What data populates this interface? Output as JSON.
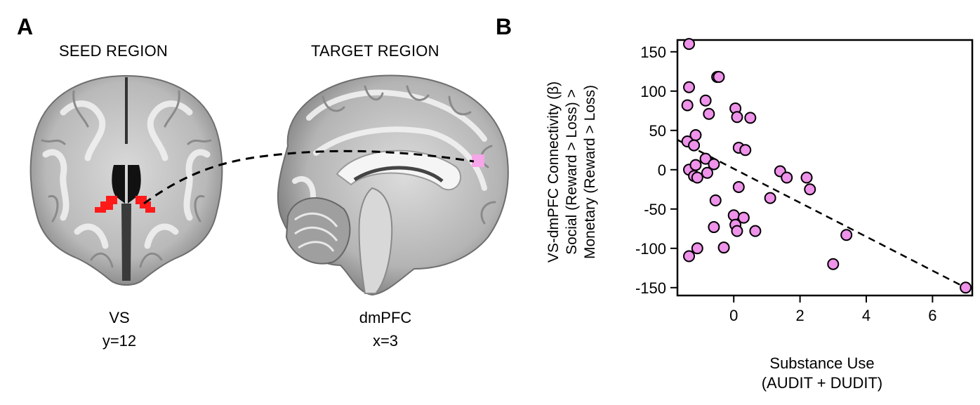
{
  "panel_a": {
    "label": "A",
    "seed": {
      "title": "SEED REGION",
      "region": "VS",
      "coord": "y=12"
    },
    "target": {
      "title": "TARGET REGION",
      "region": "dmPFC",
      "coord": "x=3"
    }
  },
  "panel_b": {
    "label": "B"
  },
  "colors": {
    "seed_roi": "#ff1a1a",
    "target_roi": "#f5a6e8",
    "point_fill": "#ee92ea"
  },
  "chart_data": {
    "type": "scatter",
    "xlabel_line1": "Substance Use",
    "xlabel_line2": "(AUDIT + DUDIT)",
    "ylabel_line1": "VS-dmPFC Connectivity (β)",
    "ylabel_line2": "Social (Reward > Loss) >",
    "ylabel_line3": "Monetary (Reward > Loss)",
    "xlim": [
      -1.7,
      7.2
    ],
    "ylim": [
      -160,
      165
    ],
    "xticks": [
      0,
      2,
      4,
      6
    ],
    "yticks": [
      150,
      100,
      50,
      0,
      -50,
      -100,
      -150
    ],
    "grid": false,
    "trend_line": {
      "x": [
        -1.7,
        7
      ],
      "y": [
        38,
        -150
      ]
    },
    "points": [
      [
        -1.35,
        160
      ],
      [
        -1.35,
        105
      ],
      [
        -1.4,
        82
      ],
      [
        -1.15,
        44
      ],
      [
        -1.4,
        36
      ],
      [
        -1.2,
        31
      ],
      [
        -1.35,
        0
      ],
      [
        -1.15,
        6
      ],
      [
        -1.2,
        -8
      ],
      [
        -1.1,
        -10
      ],
      [
        -0.85,
        14
      ],
      [
        -0.8,
        -4
      ],
      [
        -0.6,
        7
      ],
      [
        -0.85,
        88
      ],
      [
        -0.75,
        71
      ],
      [
        -0.5,
        118
      ],
      [
        -0.45,
        118
      ],
      [
        -0.55,
        -39
      ],
      [
        -0.6,
        -73
      ],
      [
        -0.3,
        -99
      ],
      [
        -1.35,
        -110
      ],
      [
        -1.1,
        -100
      ],
      [
        0.05,
        78
      ],
      [
        0.1,
        67
      ],
      [
        0.5,
        66
      ],
      [
        0.15,
        28
      ],
      [
        0.35,
        25
      ],
      [
        0.15,
        -22
      ],
      [
        0,
        -58
      ],
      [
        0.05,
        -70
      ],
      [
        0.3,
        -61
      ],
      [
        0.1,
        -78
      ],
      [
        0.65,
        -78
      ],
      [
        1.1,
        -36
      ],
      [
        1.4,
        -2
      ],
      [
        1.6,
        -10
      ],
      [
        2.2,
        -10
      ],
      [
        2.3,
        -25
      ],
      [
        3.0,
        -120
      ],
      [
        3.4,
        -83
      ],
      [
        7.0,
        -150
      ]
    ]
  }
}
